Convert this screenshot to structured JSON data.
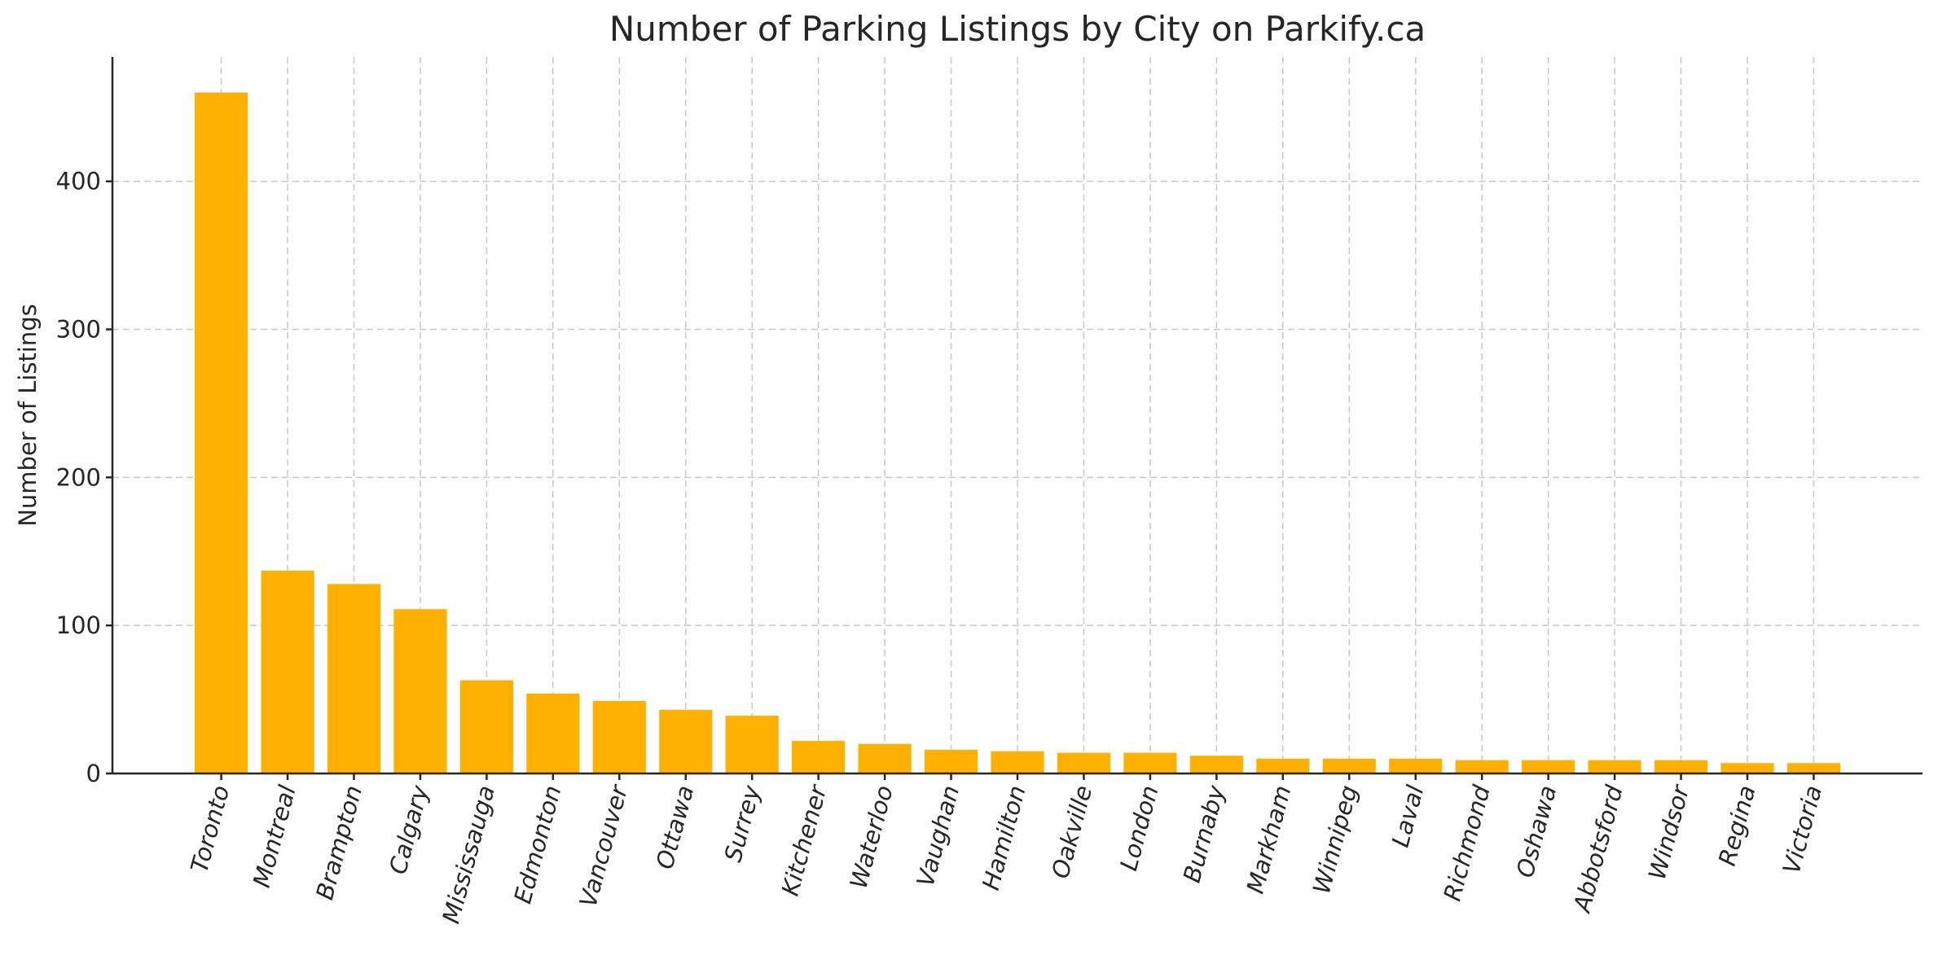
{
  "chart_data": {
    "type": "bar",
    "title": "Number of Parking Listings by City on Parkify.ca",
    "xlabel": "",
    "ylabel": "Number of Listings",
    "categories": [
      "Toronto",
      "Montreal",
      "Brampton",
      "Calgary",
      "Mississauga",
      "Edmonton",
      "Vancouver",
      "Ottawa",
      "Surrey",
      "Kitchener",
      "Waterloo",
      "Vaughan",
      "Hamilton",
      "Oakville",
      "London",
      "Burnaby",
      "Markham",
      "Winnipeg",
      "Laval",
      "Richmond",
      "Oshawa",
      "Abbotsford",
      "Windsor",
      "Regina",
      "Victoria"
    ],
    "values": [
      460,
      137,
      128,
      111,
      63,
      54,
      49,
      43,
      39,
      22,
      20,
      16,
      15,
      14,
      14,
      12,
      10,
      10,
      10,
      9,
      9,
      9,
      9,
      7,
      7
    ],
    "ylim": [
      0,
      484
    ],
    "yticks": [
      0,
      100,
      200,
      300,
      400
    ],
    "grid": true,
    "bar_color": "#FFB000",
    "xtick_rotation_deg": 75
  }
}
